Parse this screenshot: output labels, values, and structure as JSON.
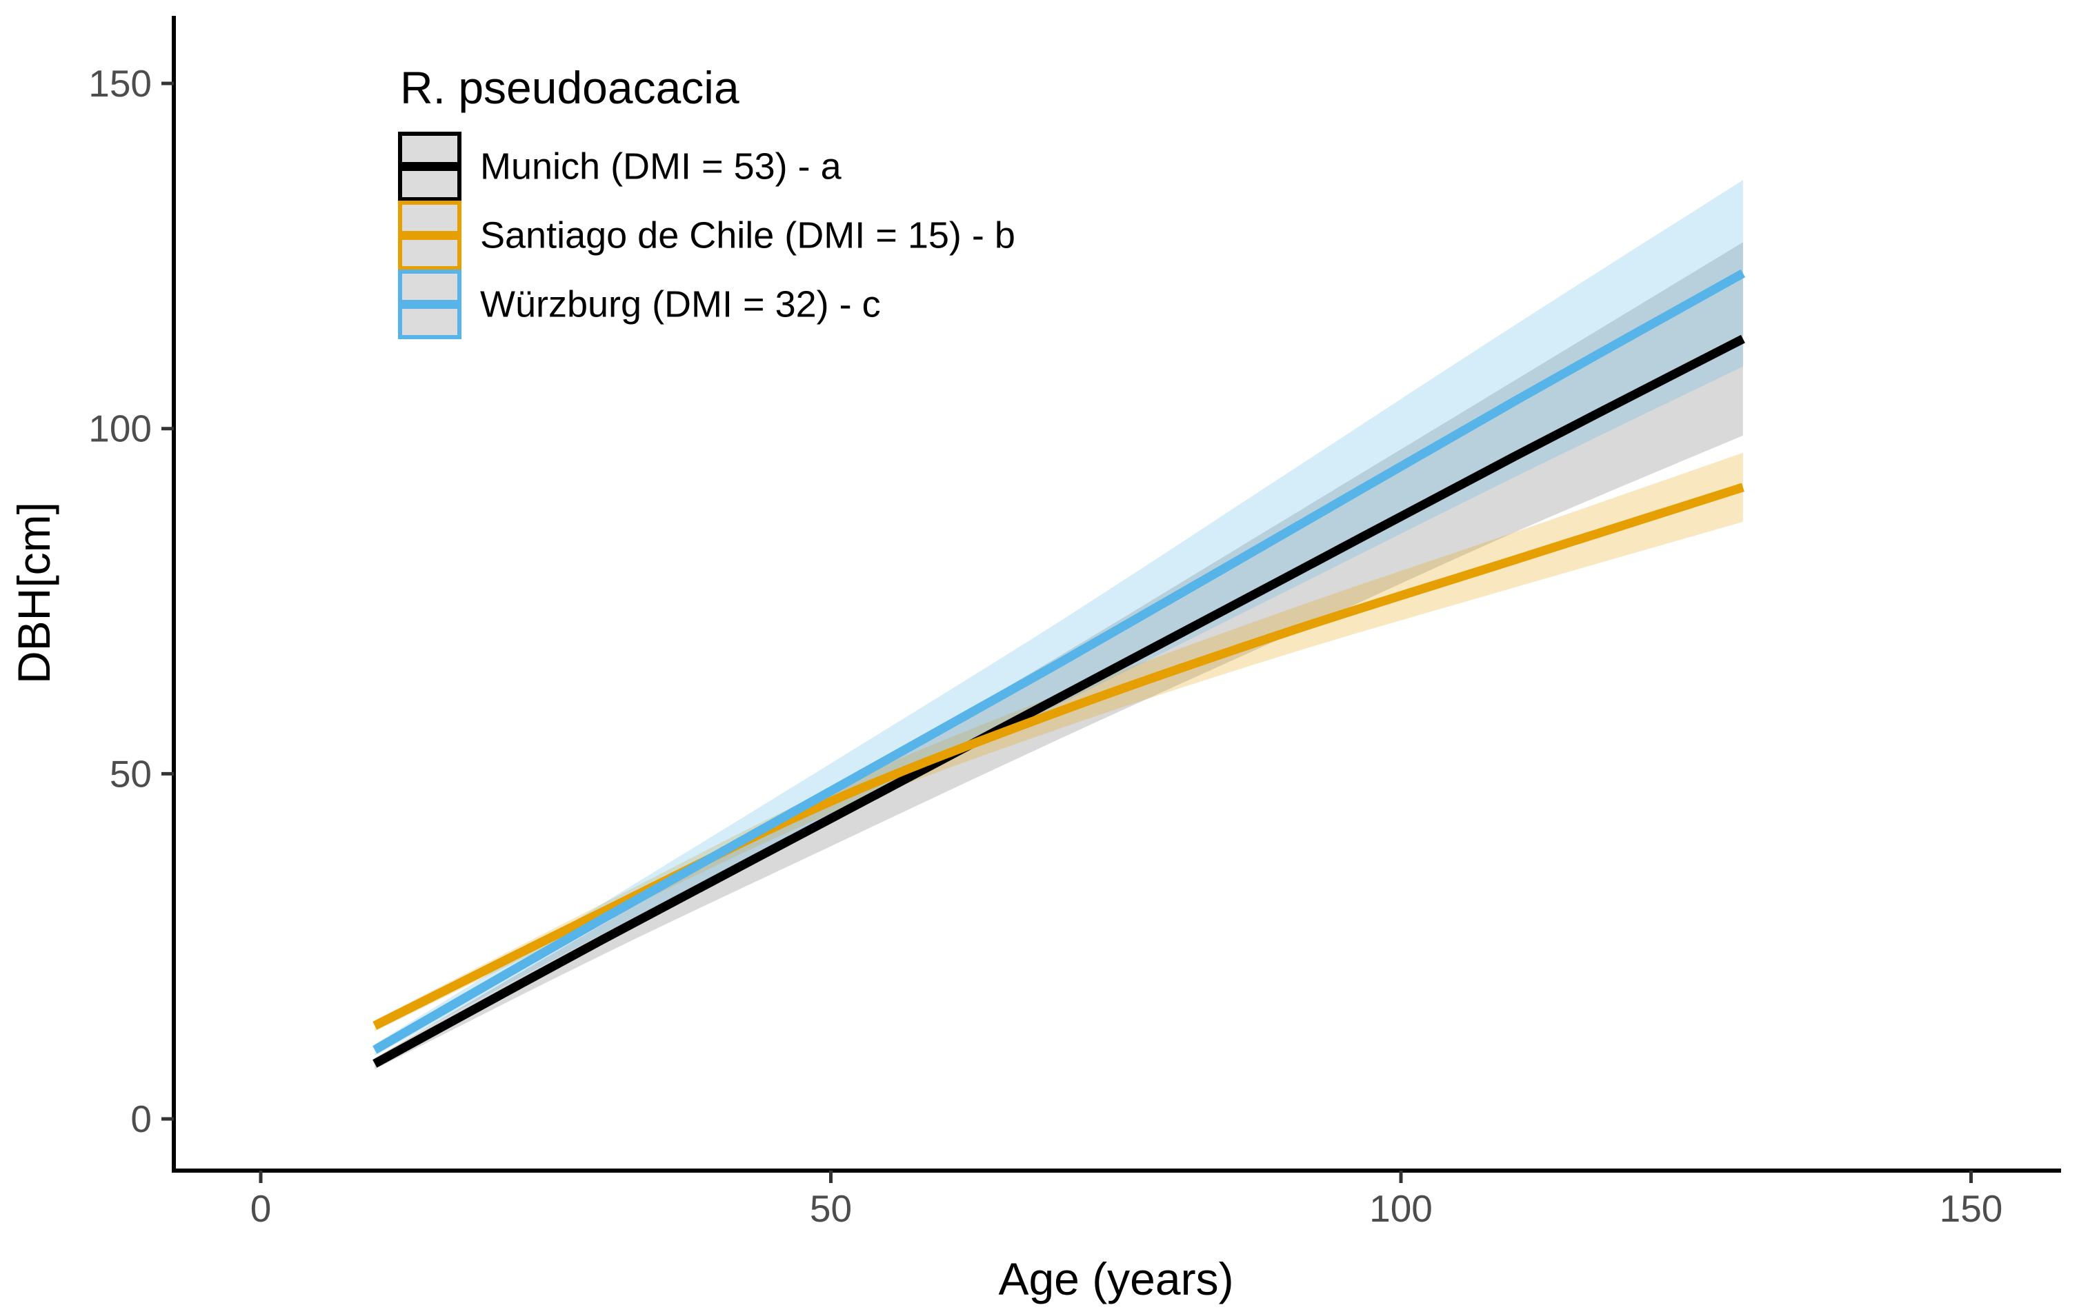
{
  "chart_data": {
    "type": "line",
    "legend_title": "R. pseudoacacia",
    "xlabel": "Age (years)",
    "ylabel": "DBH[cm]",
    "x_ticks": [
      0,
      50,
      100,
      150
    ],
    "y_ticks": [
      0,
      50,
      100,
      150
    ],
    "xlim": [
      -7.6,
      157.7
    ],
    "ylim": [
      -7.5,
      159.8
    ],
    "grid": "off",
    "legend_position": "top-left-inside",
    "x": [
      10,
      30,
      50,
      70,
      90,
      110,
      130
    ],
    "series": [
      {
        "name": "Munich (DMI = 53) - a",
        "color": "#000000",
        "band_color": "rgba(0,0,0,0.15)",
        "values": [
          8,
          26,
          43.5,
          61,
          78.5,
          96,
          113
        ],
        "ci": [
          0.8,
          2.2,
          4,
          6,
          8.5,
          11,
          14
        ]
      },
      {
        "name": "Santiago de Chile (DMI = 15) - b",
        "color": "#E69F00",
        "band_color": "rgba(230,159,0,0.25)",
        "values": [
          13.5,
          30,
          46,
          59,
          70.5,
          81,
          91.5
        ],
        "ci": [
          0.8,
          1.2,
          1.8,
          2.5,
          3.2,
          4,
          5
        ]
      },
      {
        "name": "Würzburg (DMI = 32) - c",
        "color": "#56B4E9",
        "band_color": "rgba(86,180,233,0.25)",
        "values": [
          10,
          29,
          47.5,
          66,
          85,
          104,
          122.5
        ],
        "ci": [
          0.8,
          2.2,
          4,
          6,
          8.5,
          11,
          13.5
        ]
      }
    ],
    "legend_key_fill": "#dcdcdc",
    "tick_label_color": "#4d4d4d",
    "axis_color": "#000000"
  }
}
